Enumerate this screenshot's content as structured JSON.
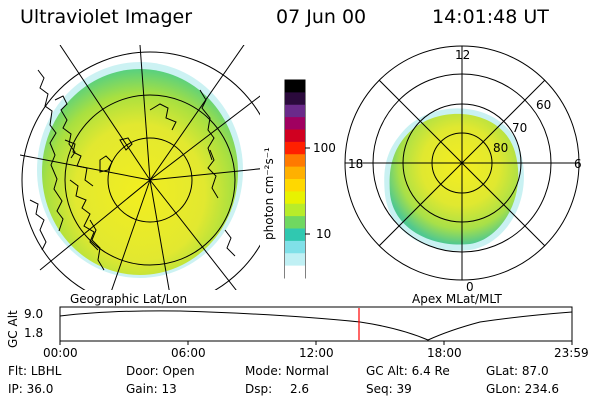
{
  "header": {
    "title": "Ultraviolet Imager",
    "date": "07 Jun 00",
    "time": "14:01:48 UT"
  },
  "colorbar": {
    "unit_label": "photon cm⁻²s⁻¹",
    "ticks": [
      "100",
      "10"
    ],
    "colors": [
      "#000000",
      "#2b0a3c",
      "#6a2a8a",
      "#a00060",
      "#d00020",
      "#ff2000",
      "#ff7a00",
      "#ffb000",
      "#ffd800",
      "#e8f200",
      "#b8ec2a",
      "#70d860",
      "#30c8b0",
      "#80e0e8",
      "#c0f0f4",
      "#ffffff"
    ]
  },
  "left_map": {
    "caption": "Geographic Lat/Lon"
  },
  "right_map": {
    "caption": "Apex MLat/MLT",
    "mlt_labels": [
      "12",
      "18",
      "6",
      "0"
    ],
    "lat_labels": [
      "60",
      "70",
      "80"
    ]
  },
  "altitude_plot": {
    "ylabel": "GC Alt",
    "yticks": [
      "9.0",
      "1.8"
    ],
    "xticks": [
      "00:00",
      "06:00",
      "12:00",
      "18:00",
      "23:59"
    ],
    "marker_color": "#ff0000"
  },
  "info": {
    "row1": [
      {
        "key": "Flt:",
        "value": "LBHL"
      },
      {
        "key": "Door:",
        "value": "Open"
      },
      {
        "key": "Mode:",
        "value": "Normal"
      },
      {
        "key": "GC Alt:",
        "value": "6.4 Re"
      },
      {
        "key": "GLat:",
        "value": "87.0"
      }
    ],
    "row2": [
      {
        "key": "IP:",
        "value": "36.0"
      },
      {
        "key": "Gain:",
        "value": "13"
      },
      {
        "key": "Dsp:",
        "value": "2.6"
      },
      {
        "key": "Seq:",
        "value": "39"
      },
      {
        "key": "GLon:",
        "value": "234.6"
      }
    ]
  }
}
